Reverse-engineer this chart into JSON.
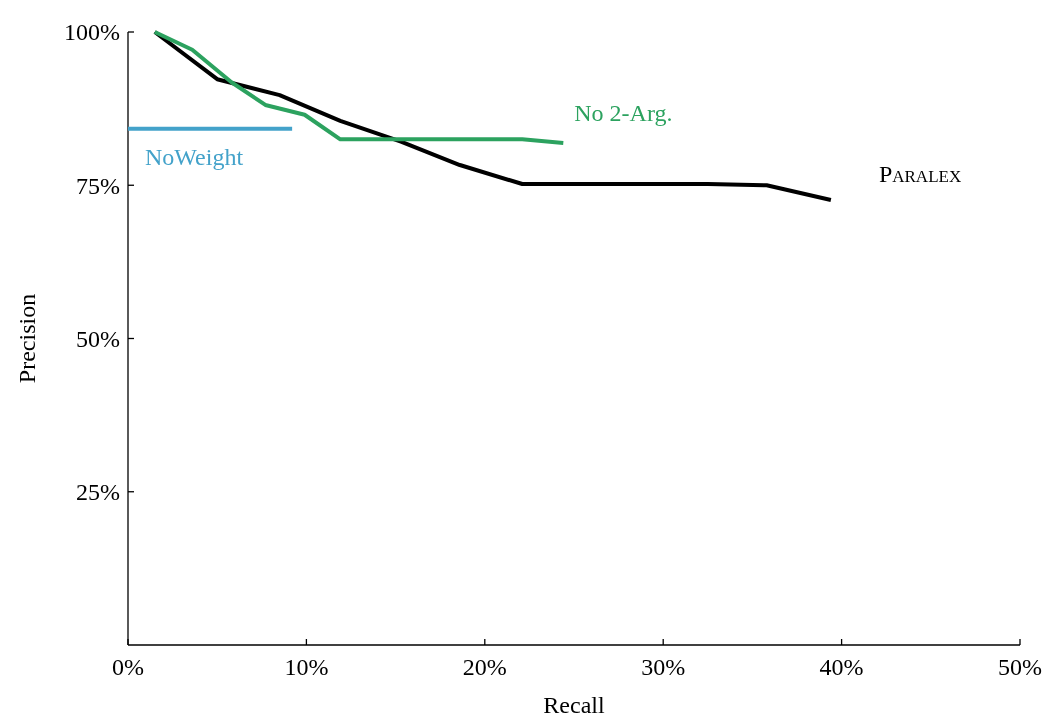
{
  "chart_data": {
    "type": "line",
    "xlabel": "Recall",
    "ylabel": "Precision",
    "xlim": [
      0,
      50
    ],
    "ylim": [
      0,
      100
    ],
    "xticks": [
      {
        "value": 0,
        "label": "0%"
      },
      {
        "value": 10,
        "label": "10%"
      },
      {
        "value": 20,
        "label": "20%"
      },
      {
        "value": 30,
        "label": "30%"
      },
      {
        "value": 40,
        "label": "40%"
      },
      {
        "value": 50,
        "label": "50%"
      }
    ],
    "yticks": [
      {
        "value": 25,
        "label": "25%"
      },
      {
        "value": 50,
        "label": "50%"
      },
      {
        "value": 75,
        "label": "75%"
      },
      {
        "value": 100,
        "label": "100%"
      }
    ],
    "grid": false,
    "marker": "none",
    "line_style": "solid",
    "series": [
      {
        "name": "Paralex",
        "color": "#000000",
        "x": [
          1.5,
          5.0,
          8.5,
          11.9,
          15.3,
          18.6,
          22.1,
          32.5,
          35.8,
          39.4
        ],
        "values": [
          100,
          92.3,
          89.7,
          85.5,
          82.1,
          78.3,
          75.2,
          75.2,
          75.0,
          72.6
        ]
      },
      {
        "name": "No 2-Arg.",
        "color": "#2ca25f",
        "x": [
          1.5,
          3.6,
          5.8,
          7.7,
          9.9,
          11.9,
          22.1,
          24.4
        ],
        "values": [
          100,
          97.1,
          91.8,
          88.1,
          86.5,
          82.5,
          82.5,
          81.9
        ]
      },
      {
        "name": "NoWeight",
        "color": "#43a2ca",
        "x": [
          0,
          9.2
        ],
        "values": [
          84.2,
          84.2
        ]
      }
    ]
  }
}
